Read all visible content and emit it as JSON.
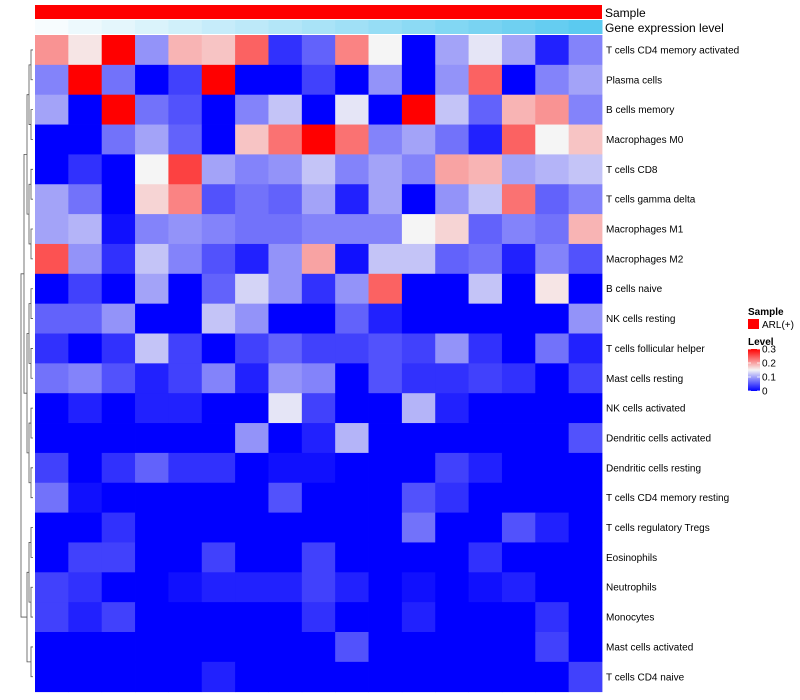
{
  "chart_data": {
    "type": "heatmap",
    "annotation_tracks": [
      {
        "name": "Sample"
      },
      {
        "name": "Gene expression level"
      }
    ],
    "rows": [
      "T cells CD4 memory activated",
      "Plasma cells",
      "B cells memory",
      "Macrophages M0",
      "T cells CD8",
      "T cells gamma delta",
      "Macrophages M1",
      "Macrophages M2",
      "B cells naive",
      "NK cells resting",
      "T cells follicular helper",
      "Mast cells resting",
      "NK cells activated",
      "Dendritic cells activated",
      "Dendritic cells resting",
      "T cells CD4 memory resting",
      "T cells regulatory  Tregs",
      "Eosinophils",
      "Neutrophils",
      "Monocytes",
      "Mast cells activated",
      "T cells CD4 naive"
    ],
    "values": [
      [
        0.21,
        0.16,
        0.3,
        0.09,
        0.19,
        0.18,
        0.24,
        0.03,
        0.06,
        0.22,
        0.15,
        0.0,
        0.1,
        0.14,
        0.1,
        0.02,
        0.08
      ],
      [
        0.08,
        0.3,
        0.07,
        0.0,
        0.04,
        0.3,
        0.0,
        0.0,
        0.04,
        0.0,
        0.09,
        0.0,
        0.09,
        0.24,
        0.0,
        0.08,
        0.1
      ],
      [
        0.1,
        0.0,
        0.3,
        0.07,
        0.05,
        0.0,
        0.08,
        0.12,
        0.0,
        0.14,
        0.0,
        0.3,
        0.12,
        0.06,
        0.19,
        0.21,
        0.08
      ],
      [
        0.0,
        0.0,
        0.07,
        0.1,
        0.06,
        0.0,
        0.18,
        0.23,
        0.3,
        0.23,
        0.08,
        0.1,
        0.07,
        0.02,
        0.24,
        0.15,
        0.18
      ],
      [
        0.0,
        0.03,
        0.0,
        0.15,
        0.26,
        0.1,
        0.08,
        0.09,
        0.12,
        0.08,
        0.1,
        0.08,
        0.2,
        0.19,
        0.1,
        0.11,
        0.12
      ],
      [
        0.1,
        0.07,
        0.0,
        0.17,
        0.22,
        0.05,
        0.07,
        0.06,
        0.1,
        0.02,
        0.1,
        0.0,
        0.09,
        0.12,
        0.23,
        0.06,
        0.08
      ],
      [
        0.1,
        0.11,
        0.01,
        0.08,
        0.09,
        0.08,
        0.07,
        0.07,
        0.08,
        0.08,
        0.08,
        0.15,
        0.17,
        0.06,
        0.08,
        0.07,
        0.19
      ],
      [
        0.25,
        0.09,
        0.03,
        0.12,
        0.08,
        0.05,
        0.02,
        0.09,
        0.2,
        0.01,
        0.12,
        0.12,
        0.06,
        0.07,
        0.02,
        0.08,
        0.05
      ],
      [
        0.0,
        0.04,
        0.0,
        0.1,
        0.0,
        0.06,
        0.13,
        0.09,
        0.03,
        0.09,
        0.24,
        0.0,
        0.0,
        0.12,
        0.0,
        0.16,
        0.0
      ],
      [
        0.06,
        0.06,
        0.09,
        0.0,
        0.0,
        0.12,
        0.09,
        0.0,
        0.0,
        0.06,
        0.02,
        0.0,
        0.0,
        0.0,
        0.0,
        0.0,
        0.09
      ],
      [
        0.03,
        0.0,
        0.03,
        0.12,
        0.04,
        0.0,
        0.04,
        0.06,
        0.04,
        0.04,
        0.05,
        0.04,
        0.09,
        0.03,
        0.0,
        0.07,
        0.02
      ],
      [
        0.07,
        0.08,
        0.05,
        0.02,
        0.04,
        0.08,
        0.02,
        0.09,
        0.08,
        0.0,
        0.05,
        0.03,
        0.03,
        0.04,
        0.03,
        0.0,
        0.04
      ],
      [
        0.0,
        0.02,
        0.0,
        0.02,
        0.02,
        0.0,
        0.0,
        0.14,
        0.04,
        0.0,
        0.0,
        0.11,
        0.02,
        0.0,
        0.0,
        0.0,
        0.0
      ],
      [
        0.0,
        0.0,
        0.0,
        0.0,
        0.0,
        0.0,
        0.09,
        0.0,
        0.02,
        0.11,
        0.0,
        0.0,
        0.0,
        0.0,
        0.0,
        0.0,
        0.05
      ],
      [
        0.04,
        0.0,
        0.03,
        0.06,
        0.03,
        0.03,
        0.0,
        0.01,
        0.01,
        0.0,
        0.0,
        0.0,
        0.04,
        0.02,
        0.0,
        0.0,
        0.0
      ],
      [
        0.07,
        0.01,
        0.0,
        0.0,
        0.0,
        0.0,
        0.0,
        0.05,
        0.0,
        0.0,
        0.0,
        0.05,
        0.03,
        0.0,
        0.0,
        0.0,
        0.0
      ],
      [
        0.0,
        0.0,
        0.03,
        0.0,
        0.0,
        0.0,
        0.0,
        0.0,
        0.0,
        0.0,
        0.0,
        0.07,
        0.0,
        0.0,
        0.05,
        0.02,
        0.0
      ],
      [
        0.0,
        0.04,
        0.04,
        0.0,
        0.0,
        0.04,
        0.0,
        0.0,
        0.04,
        0.0,
        0.0,
        0.0,
        0.0,
        0.03,
        0.0,
        0.0,
        0.0
      ],
      [
        0.04,
        0.03,
        0.0,
        0.0,
        0.01,
        0.02,
        0.02,
        0.02,
        0.04,
        0.02,
        0.0,
        0.01,
        0.0,
        0.01,
        0.02,
        0.0,
        0.0
      ],
      [
        0.04,
        0.02,
        0.04,
        0.0,
        0.0,
        0.0,
        0.0,
        0.0,
        0.03,
        0.0,
        0.0,
        0.02,
        0.0,
        0.0,
        0.0,
        0.03,
        0.0
      ],
      [
        0.0,
        0.0,
        0.0,
        0.0,
        0.0,
        0.0,
        0.0,
        0.0,
        0.0,
        0.05,
        0.0,
        0.0,
        0.0,
        0.0,
        0.0,
        0.04,
        0.0
      ],
      [
        0.0,
        0.0,
        0.0,
        0.0,
        0.0,
        0.02,
        0.0,
        0.0,
        0.0,
        0.0,
        0.0,
        0.0,
        0.0,
        0.0,
        0.0,
        0.0,
        0.04
      ]
    ],
    "n_columns": 17,
    "gene_expression_track": [
      0.0,
      0.06,
      0.12,
      0.18,
      0.24,
      0.3,
      0.36,
      0.42,
      0.48,
      0.54,
      0.6,
      0.66,
      0.72,
      0.78,
      0.84,
      0.9,
      0.96
    ],
    "scale": {
      "min": 0,
      "max": 0.3,
      "low_color": "#0000ff",
      "mid_color": "#f5f5f5",
      "high_color": "#ff0000"
    },
    "colors": {
      "sample": "#ff0000",
      "gene_low": "#f7fcfe",
      "gene_high": "#55c8ef",
      "dendrogram": "#555555"
    },
    "legend": {
      "position": "right",
      "sample_title": "Sample",
      "sample_entries": [
        {
          "label": "ARL(+)",
          "color": "#ff0000"
        }
      ],
      "level_title": "Level",
      "level_ticks": [
        {
          "value": 0.3,
          "label": "0.3"
        },
        {
          "value": 0.2,
          "label": "0.2"
        },
        {
          "value": 0.1,
          "label": "0.1"
        },
        {
          "value": 0,
          "label": "0"
        }
      ]
    }
  }
}
